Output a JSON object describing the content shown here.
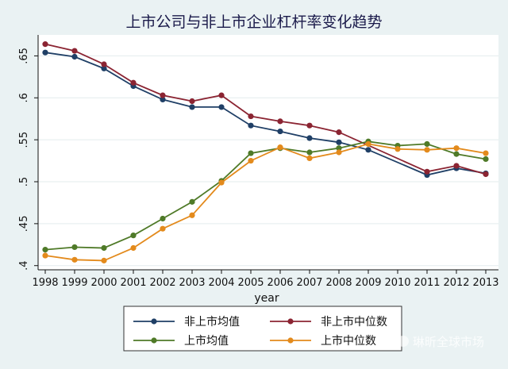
{
  "chart_data": {
    "type": "line",
    "title": "上市公司与非上市企业杠杆率变化趋势",
    "xlabel": "year",
    "ylabel": "",
    "x": [
      1998,
      1999,
      2000,
      2001,
      2002,
      2003,
      2004,
      2005,
      2006,
      2007,
      2008,
      2009,
      2010,
      2011,
      2012,
      2013
    ],
    "x_tick_labels": [
      "1998",
      "1999",
      "2000",
      "2001",
      "2002",
      "2003",
      "2004",
      "2005",
      "2006",
      "2007",
      "2008",
      "2009",
      "2010",
      "2011",
      "2012",
      "2013"
    ],
    "ylim": [
      0.395,
      0.675
    ],
    "y_ticks": [
      0.4,
      0.45,
      0.5,
      0.55,
      0.6,
      0.65
    ],
    "y_tick_labels": [
      ".4",
      ".45",
      ".5",
      ".55",
      ".6",
      ".65"
    ],
    "grid": true,
    "legend_position": "bottom",
    "series": [
      {
        "name": "非上市均值",
        "color": "#1f3f66",
        "values": [
          0.654,
          0.649,
          0.635,
          0.614,
          0.598,
          0.589,
          0.589,
          0.567,
          0.56,
          0.552,
          0.547,
          0.538,
          null,
          0.508,
          0.516,
          0.51
        ]
      },
      {
        "name": "非上市中位数",
        "color": "#8b2432",
        "values": [
          0.664,
          0.656,
          0.64,
          0.618,
          0.603,
          0.596,
          0.603,
          0.578,
          0.572,
          0.567,
          0.559,
          null,
          null,
          0.512,
          0.519,
          0.509
        ]
      },
      {
        "name": "上市均值",
        "color": "#4f7a28",
        "values": [
          0.419,
          0.422,
          0.421,
          0.436,
          0.456,
          0.476,
          0.501,
          0.534,
          0.54,
          0.535,
          0.54,
          0.548,
          0.543,
          0.545,
          0.533,
          0.527
        ]
      },
      {
        "name": "上市中位数",
        "color": "#e38a1c",
        "values": [
          0.412,
          0.407,
          0.406,
          0.421,
          0.444,
          0.46,
          0.499,
          0.525,
          0.541,
          0.528,
          0.535,
          0.545,
          0.539,
          0.538,
          0.54,
          0.534
        ]
      }
    ]
  },
  "legend": {
    "items": [
      {
        "label": "非上市均值",
        "color": "#1f3f66"
      },
      {
        "label": "非上市中位数",
        "color": "#8b2432"
      },
      {
        "label": "上市均值",
        "color": "#4f7a28"
      },
      {
        "label": "上市中位数",
        "color": "#e38a1c"
      }
    ]
  },
  "watermark": {
    "text": "琳昕全球市场",
    "icon": "wechat-icon"
  },
  "colors": {
    "background": "#eaf2f3",
    "plot_background": "#ffffff",
    "grid": "#e3ecee"
  }
}
